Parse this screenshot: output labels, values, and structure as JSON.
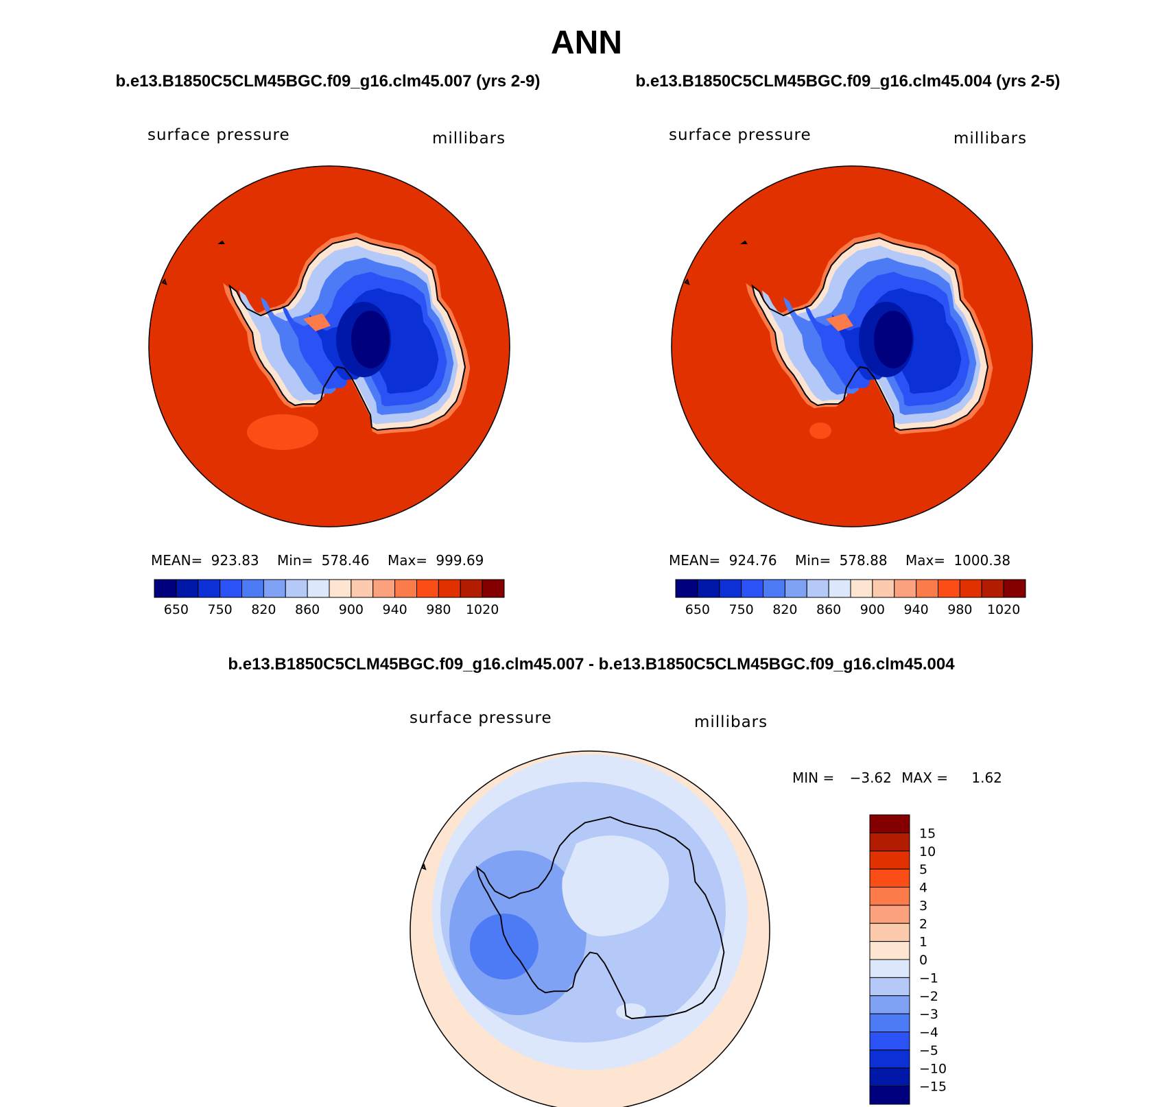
{
  "title": "ANN",
  "colors": {
    "abs_scale": [
      "#00007f",
      "#0018a8",
      "#0a30d6",
      "#2a52f4",
      "#4d7af5",
      "#7fa2f5",
      "#b4c9f7",
      "#dce7fb",
      "#fde5d2",
      "#fccbad",
      "#fca27f",
      "#fc7b4a",
      "#fb4e16",
      "#e23100",
      "#b21c00",
      "#840000"
    ],
    "diff_scale": [
      "#00007f",
      "#0018a8",
      "#0a30d6",
      "#2a52f4",
      "#4d7af5",
      "#7fa2f5",
      "#b4c9f7",
      "#dce7fb",
      "#fde5d2",
      "#fccbad",
      "#fca27f",
      "#fc7b4a",
      "#fb4e16",
      "#e23100",
      "#b21c00",
      "#840000"
    ],
    "ocean_abs": "#e23100",
    "ocean_diff_near": "#b4c9f7"
  },
  "panels": [
    {
      "case_title": "b.e13.B1850C5CLM45BGC.f09_g16.clm45.007 (yrs 2-9)",
      "variable": "surface pressure",
      "units": "millibars",
      "stats": {
        "mean_label": "MEAN=",
        "mean": "923.83",
        "min_label": "Min=",
        "min": "578.46",
        "max_label": "Max=",
        "max": "999.69"
      },
      "colorbar_ticks": [
        "650",
        "750",
        "820",
        "860",
        "900",
        "940",
        "980",
        "1020"
      ]
    },
    {
      "case_title": "b.e13.B1850C5CLM45BGC.f09_g16.clm45.004 (yrs 2-5)",
      "variable": "surface pressure",
      "units": "millibars",
      "stats": {
        "mean_label": "MEAN=",
        "mean": "924.76",
        "min_label": "Min=",
        "min": "578.88",
        "max_label": "Max=",
        "max": "1000.38"
      },
      "colorbar_ticks": [
        "650",
        "750",
        "820",
        "860",
        "900",
        "940",
        "980",
        "1020"
      ]
    }
  ],
  "difference": {
    "case_title": "b.e13.B1850C5CLM45BGC.f09_g16.clm45.007 - b.e13.B1850C5CLM45BGC.f09_g16.clm45.004",
    "variable": "surface pressure",
    "units": "millibars",
    "min_label": "MIN =",
    "min": "−3.62",
    "max_label": "MAX =",
    "max": "1.62",
    "colorbar_ticks": [
      "15",
      "10",
      "5",
      "4",
      "3",
      "2",
      "1",
      "0",
      "−1",
      "−2",
      "−3",
      "−4",
      "−5",
      "−10",
      "−15"
    ]
  }
}
